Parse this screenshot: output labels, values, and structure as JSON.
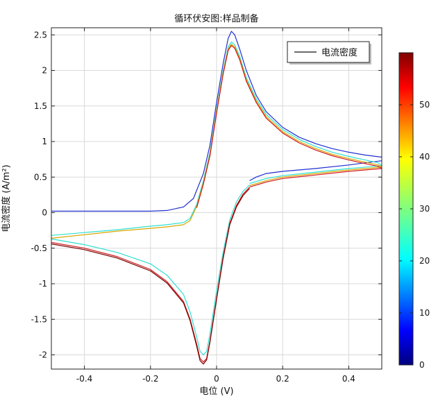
{
  "chart_data": {
    "type": "line",
    "title": "循环伏安图:样品制备",
    "xlabel": "电位 (V)",
    "ylabel": "电流密度 (A/m²)",
    "xlim": [
      -0.5,
      0.5
    ],
    "ylim": [
      -2.2,
      2.6
    ],
    "xticks": [
      -0.4,
      -0.2,
      0,
      0.2,
      0.4
    ],
    "xtick_labels": [
      "-0.4",
      "-0.2",
      "0",
      "0.2",
      "0.4"
    ],
    "yticks": [
      -2,
      -1.5,
      -1,
      -0.5,
      0,
      0.5,
      1,
      1.5,
      2,
      2.5
    ],
    "ytick_labels": [
      "-2",
      "-1.5",
      "-1",
      "-0.5",
      "0",
      "0.5",
      "1",
      "1.5",
      "2",
      "2.5"
    ],
    "grid": true,
    "legend": {
      "placement": "top-right",
      "entries": [
        "电流密度"
      ]
    },
    "colorbar": {
      "min": 0,
      "max": 60,
      "ticks": [
        0,
        10,
        20,
        30,
        40,
        50
      ],
      "tick_labels": [
        "0",
        "10",
        "20",
        "30",
        "40",
        "50"
      ],
      "colormap": "jet"
    },
    "series": [
      {
        "color": "#1f2fd0",
        "anodic": [
          [
            -0.5,
            0.02
          ],
          [
            -0.3,
            0.02
          ],
          [
            -0.2,
            0.02
          ],
          [
            -0.15,
            0.03
          ],
          [
            -0.1,
            0.08
          ],
          [
            -0.07,
            0.2
          ],
          [
            -0.04,
            0.55
          ],
          [
            -0.02,
            0.95
          ],
          [
            0.0,
            1.55
          ],
          [
            0.02,
            2.1
          ],
          [
            0.035,
            2.45
          ],
          [
            0.045,
            2.55
          ],
          [
            0.055,
            2.5
          ],
          [
            0.07,
            2.3
          ],
          [
            0.09,
            2.0
          ],
          [
            0.12,
            1.65
          ],
          [
            0.15,
            1.42
          ],
          [
            0.2,
            1.2
          ],
          [
            0.25,
            1.06
          ],
          [
            0.3,
            0.97
          ],
          [
            0.35,
            0.9
          ],
          [
            0.4,
            0.85
          ],
          [
            0.45,
            0.81
          ],
          [
            0.5,
            0.78
          ]
        ],
        "cathodic": [
          [
            0.5,
            0.73
          ],
          [
            0.4,
            0.67
          ],
          [
            0.3,
            0.62
          ],
          [
            0.2,
            0.58
          ],
          [
            0.15,
            0.55
          ],
          [
            0.12,
            0.5
          ],
          [
            0.1,
            0.45
          ]
        ]
      },
      {
        "color": "#2ee0d0",
        "anodic": [
          [
            0.1,
            0.41
          ],
          [
            0.15,
            0.48
          ],
          [
            0.2,
            0.52
          ],
          [
            0.3,
            0.57
          ],
          [
            0.4,
            0.62
          ],
          [
            0.5,
            0.66
          ],
          [
            0.49,
            0.7
          ],
          [
            0.45,
            0.74
          ],
          [
            0.4,
            0.79
          ],
          [
            0.35,
            0.85
          ],
          [
            0.3,
            0.93
          ],
          [
            0.25,
            1.03
          ],
          [
            0.2,
            1.17
          ],
          [
            0.15,
            1.38
          ],
          [
            0.12,
            1.6
          ],
          [
            0.09,
            1.9
          ],
          [
            0.07,
            2.2
          ],
          [
            0.055,
            2.36
          ],
          [
            0.045,
            2.4
          ],
          [
            0.035,
            2.33
          ],
          [
            0.02,
            2.0
          ],
          [
            0.0,
            1.45
          ],
          [
            -0.02,
            0.85
          ],
          [
            -0.04,
            0.45
          ],
          [
            -0.06,
            0.12
          ],
          [
            -0.08,
            -0.08
          ],
          [
            -0.1,
            -0.14
          ],
          [
            -0.15,
            -0.17
          ],
          [
            -0.2,
            -0.19
          ],
          [
            -0.3,
            -0.24
          ],
          [
            -0.4,
            -0.28
          ],
          [
            -0.5,
            -0.32
          ]
        ],
        "cathodic": [
          [
            -0.5,
            -0.37
          ],
          [
            -0.4,
            -0.45
          ],
          [
            -0.3,
            -0.56
          ],
          [
            -0.2,
            -0.72
          ],
          [
            -0.15,
            -0.88
          ],
          [
            -0.1,
            -1.15
          ],
          [
            -0.08,
            -1.4
          ],
          [
            -0.06,
            -1.75
          ],
          [
            -0.05,
            -1.95
          ],
          [
            -0.04,
            -2.0
          ],
          [
            -0.03,
            -1.95
          ],
          [
            -0.02,
            -1.7
          ],
          [
            0.0,
            -1.1
          ],
          [
            0.02,
            -0.55
          ],
          [
            0.04,
            -0.1
          ],
          [
            0.06,
            0.15
          ],
          [
            0.08,
            0.3
          ],
          [
            0.1,
            0.39
          ]
        ]
      },
      {
        "color": "#d9a400",
        "anodic": [
          [
            0.1,
            0.38
          ],
          [
            0.15,
            0.45
          ],
          [
            0.2,
            0.5
          ],
          [
            0.3,
            0.55
          ],
          [
            0.4,
            0.6
          ],
          [
            0.5,
            0.64
          ],
          [
            0.49,
            0.67
          ],
          [
            0.45,
            0.71
          ],
          [
            0.4,
            0.76
          ],
          [
            0.35,
            0.82
          ],
          [
            0.3,
            0.9
          ],
          [
            0.25,
            1.0
          ],
          [
            0.2,
            1.14
          ],
          [
            0.15,
            1.35
          ],
          [
            0.12,
            1.57
          ],
          [
            0.09,
            1.87
          ],
          [
            0.07,
            2.17
          ],
          [
            0.055,
            2.33
          ],
          [
            0.045,
            2.37
          ],
          [
            0.035,
            2.3
          ],
          [
            0.02,
            1.97
          ],
          [
            0.0,
            1.42
          ],
          [
            -0.02,
            0.82
          ],
          [
            -0.04,
            0.42
          ],
          [
            -0.06,
            0.09
          ],
          [
            -0.08,
            -0.11
          ],
          [
            -0.1,
            -0.17
          ],
          [
            -0.15,
            -0.2
          ],
          [
            -0.2,
            -0.22
          ],
          [
            -0.3,
            -0.26
          ],
          [
            -0.4,
            -0.31
          ],
          [
            -0.5,
            -0.36
          ]
        ],
        "cathodic": []
      },
      {
        "color": "#d01818",
        "anodic": [
          [
            0.1,
            0.36
          ],
          [
            0.15,
            0.43
          ],
          [
            0.2,
            0.48
          ],
          [
            0.3,
            0.53
          ],
          [
            0.4,
            0.58
          ],
          [
            0.5,
            0.62
          ],
          [
            0.49,
            0.65
          ],
          [
            0.45,
            0.69
          ],
          [
            0.4,
            0.74
          ],
          [
            0.35,
            0.8
          ],
          [
            0.3,
            0.88
          ],
          [
            0.25,
            0.98
          ],
          [
            0.2,
            1.12
          ],
          [
            0.15,
            1.33
          ],
          [
            0.12,
            1.55
          ],
          [
            0.09,
            1.85
          ],
          [
            0.07,
            2.15
          ],
          [
            0.055,
            2.31
          ],
          [
            0.045,
            2.35
          ],
          [
            0.035,
            2.28
          ],
          [
            0.02,
            1.95
          ],
          [
            0.0,
            1.4
          ],
          [
            -0.02,
            0.8
          ],
          [
            -0.04,
            0.4
          ],
          [
            -0.06,
            0.07
          ]
        ],
        "cathodic": [
          [
            -0.5,
            -0.42
          ],
          [
            -0.4,
            -0.5
          ],
          [
            -0.3,
            -0.62
          ],
          [
            -0.2,
            -0.8
          ],
          [
            -0.15,
            -0.97
          ],
          [
            -0.1,
            -1.25
          ],
          [
            -0.08,
            -1.5
          ],
          [
            -0.06,
            -1.85
          ],
          [
            -0.05,
            -2.05
          ],
          [
            -0.04,
            -2.1
          ],
          [
            -0.03,
            -2.05
          ],
          [
            -0.02,
            -1.8
          ],
          [
            0.0,
            -1.2
          ],
          [
            0.02,
            -0.62
          ],
          [
            0.04,
            -0.15
          ],
          [
            0.06,
            0.1
          ],
          [
            0.08,
            0.26
          ],
          [
            0.1,
            0.36
          ]
        ]
      },
      {
        "color": "#7a0000",
        "anodic": [],
        "cathodic": [
          [
            -0.5,
            -0.44
          ],
          [
            -0.4,
            -0.52
          ],
          [
            -0.3,
            -0.64
          ],
          [
            -0.2,
            -0.82
          ],
          [
            -0.15,
            -0.99
          ],
          [
            -0.1,
            -1.27
          ],
          [
            -0.08,
            -1.52
          ],
          [
            -0.06,
            -1.88
          ],
          [
            -0.05,
            -2.08
          ],
          [
            -0.04,
            -2.13
          ],
          [
            -0.03,
            -2.07
          ],
          [
            -0.02,
            -1.82
          ],
          [
            0.0,
            -1.22
          ],
          [
            0.02,
            -0.64
          ],
          [
            0.04,
            -0.17
          ],
          [
            0.06,
            0.08
          ],
          [
            0.08,
            0.24
          ],
          [
            0.1,
            0.34
          ]
        ]
      }
    ]
  }
}
